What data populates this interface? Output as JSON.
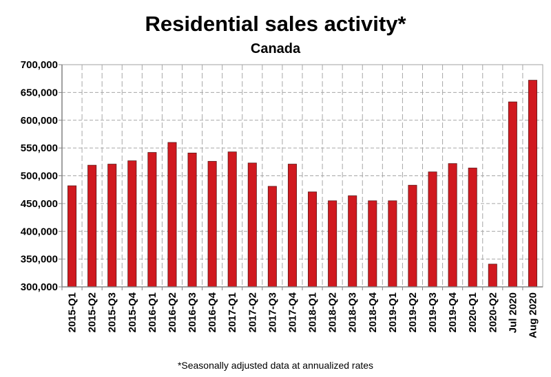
{
  "chart_data": {
    "type": "bar",
    "title": "Residential sales activity*",
    "subtitle": "Canada",
    "footnote": "*Seasonally adjusted data at annualized rates",
    "xlabel": "",
    "ylabel": "",
    "ylim": [
      300000,
      700000
    ],
    "yticks": [
      300000,
      350000,
      400000,
      450000,
      500000,
      550000,
      600000,
      650000,
      700000
    ],
    "ytick_labels": [
      "300,000",
      "350,000",
      "400,000",
      "450,000",
      "500,000",
      "550,000",
      "600,000",
      "650,000",
      "700,000"
    ],
    "grid": true,
    "bar_color": "#d0191f",
    "categories": [
      "2015-Q1",
      "2015-Q2",
      "2015-Q3",
      "2015-Q4",
      "2016-Q1",
      "2016-Q2",
      "2016-Q3",
      "2016-Q4",
      "2017-Q1",
      "2017-Q2",
      "2017-Q3",
      "2017-Q4",
      "2018-Q1",
      "2018-Q2",
      "2018-Q3",
      "2018-Q4",
      "2019-Q1",
      "2019-Q2",
      "2019-Q3",
      "2019-Q4",
      "2020-Q1",
      "2020-Q2",
      "Jul 2020",
      "Aug 2020"
    ],
    "values": [
      482000,
      519000,
      521000,
      527000,
      542000,
      560000,
      541000,
      526000,
      543000,
      523000,
      481000,
      521000,
      471000,
      455000,
      464000,
      455000,
      455000,
      483000,
      507000,
      522000,
      514000,
      341000,
      633000,
      672000
    ]
  }
}
